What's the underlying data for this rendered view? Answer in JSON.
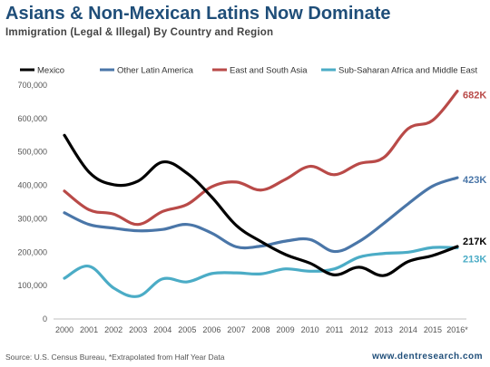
{
  "header": {
    "title": "Asians & Non-Mexican Latins Now Dominate",
    "subtitle": "Immigration (Legal & Illegal) By Country and Region"
  },
  "footer": {
    "source": "Source: U.S. Census Bureau, *Extrapolated from Half Year Data",
    "website": "www.dentresearch.com"
  },
  "chart_data": {
    "type": "line",
    "title": "Asians & Non-Mexican Latins Now Dominate",
    "subtitle": "Immigration (Legal & Illegal) By Country and Region",
    "xlabel": "",
    "ylabel": "",
    "x": [
      "2000",
      "2001",
      "2002",
      "2003",
      "2004",
      "2005",
      "2006",
      "2007",
      "2008",
      "2009",
      "2010",
      "2011",
      "2012",
      "2013",
      "2014",
      "2015",
      "2016*"
    ],
    "ylim": [
      0,
      700000
    ],
    "yticks": [
      0,
      100000,
      200000,
      300000,
      400000,
      500000,
      600000,
      700000
    ],
    "ytick_labels": [
      "0",
      "100,000",
      "200,000",
      "300,000",
      "400,000",
      "500,000",
      "600,000",
      "700,000"
    ],
    "grid": false,
    "legend_position": "top",
    "series": [
      {
        "name": "Mexico",
        "color": "#000000",
        "values": [
          550000,
          440000,
          402000,
          413000,
          470000,
          436000,
          365000,
          280000,
          232000,
          193000,
          167000,
          132000,
          155000,
          130000,
          172000,
          190000,
          217000
        ],
        "end_label": "217K"
      },
      {
        "name": "Other Latin America",
        "color": "#4a76a8",
        "values": [
          318000,
          283000,
          272000,
          264000,
          268000,
          283000,
          257000,
          216000,
          218000,
          233000,
          238000,
          202000,
          232000,
          286000,
          345000,
          398000,
          423000
        ],
        "end_label": "423K"
      },
      {
        "name": "East and South Asia",
        "color": "#b94a48",
        "values": [
          383000,
          327000,
          314000,
          283000,
          322000,
          343000,
          396000,
          410000,
          386000,
          418000,
          457000,
          432000,
          465000,
          483000,
          570000,
          595000,
          682000
        ],
        "end_label": "682K"
      },
      {
        "name": "Sub-Saharan Africa and Middle East",
        "color": "#4bacc6",
        "values": [
          122000,
          158000,
          93000,
          68000,
          120000,
          111000,
          136000,
          138000,
          135000,
          150000,
          143000,
          150000,
          185000,
          196000,
          200000,
          214000,
          213000
        ],
        "end_label": "213K"
      }
    ]
  }
}
